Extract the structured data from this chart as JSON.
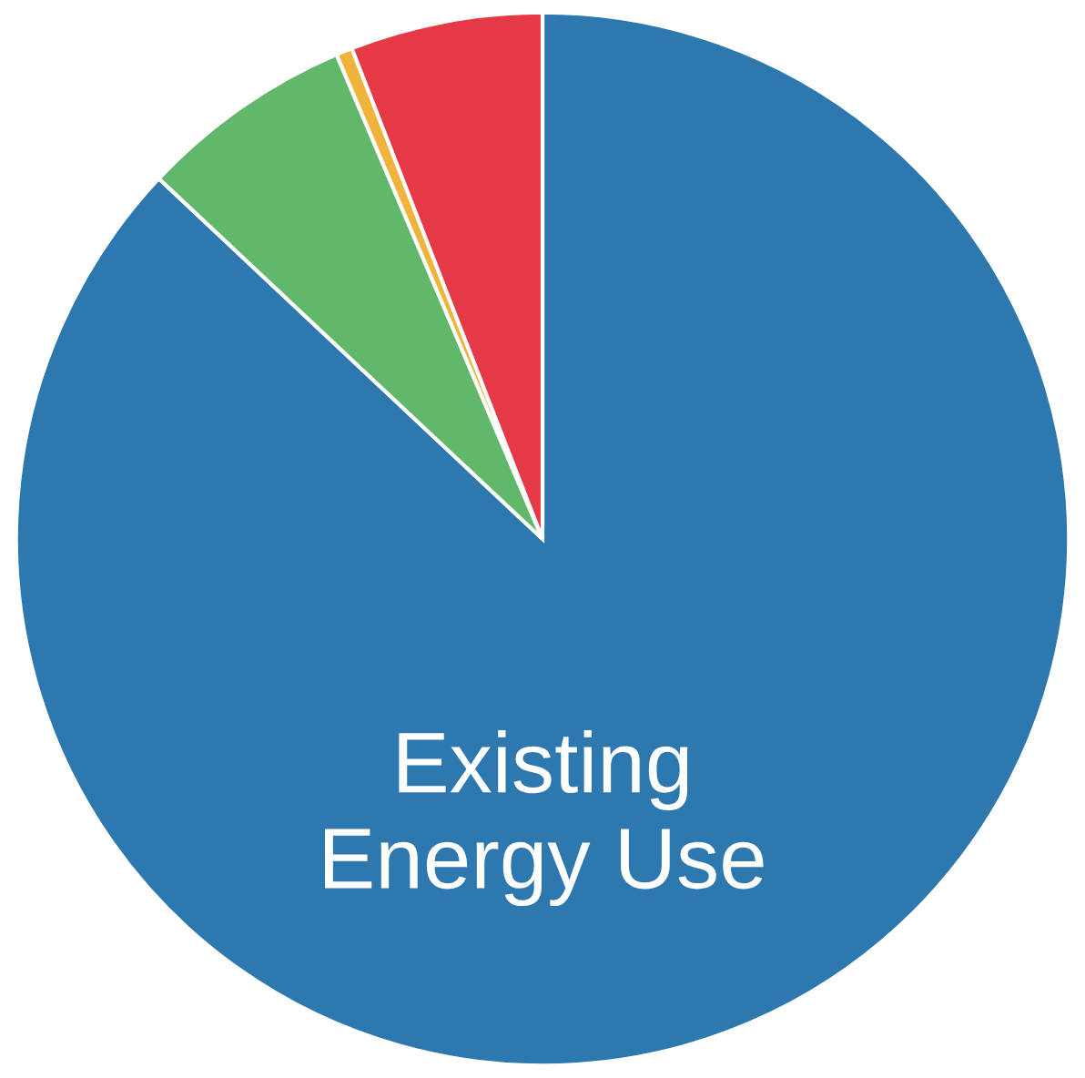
{
  "chart_data": {
    "type": "pie",
    "categories": [
      "Existing\nEnergy Use",
      null,
      null,
      null
    ],
    "values": [
      87.0,
      6.6,
      0.5,
      5.9
    ],
    "colors": [
      "#2e78b0",
      "#62b86a",
      "#f0b43c",
      "#e63946"
    ]
  }
}
